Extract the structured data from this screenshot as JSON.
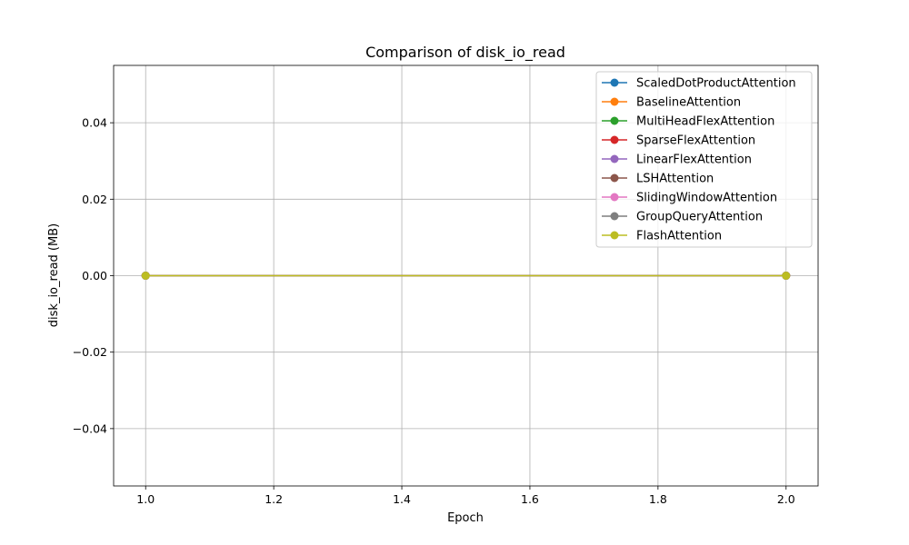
{
  "chart_data": {
    "type": "line",
    "title": "Comparison of disk_io_read",
    "xlabel": "Epoch",
    "ylabel": "disk_io_read (MB)",
    "x": [
      1.0,
      2.0
    ],
    "xlim": [
      0.95,
      2.05
    ],
    "ylim": [
      -0.055,
      0.055
    ],
    "xticks": [
      1.0,
      1.2,
      1.4,
      1.6,
      1.8,
      2.0
    ],
    "xtick_labels": [
      "1.0",
      "1.2",
      "1.4",
      "1.6",
      "1.8",
      "2.0"
    ],
    "yticks": [
      -0.04,
      -0.02,
      0.0,
      0.02,
      0.04
    ],
    "ytick_labels": [
      "−0.04",
      "−0.02",
      "0.00",
      "0.02",
      "0.04"
    ],
    "grid": true,
    "legend_position": "top-right",
    "series": [
      {
        "name": "ScaledDotProductAttention",
        "color": "#1f77b4",
        "values": [
          0.0,
          0.0
        ]
      },
      {
        "name": "BaselineAttention",
        "color": "#ff7f0e",
        "values": [
          0.0,
          0.0
        ]
      },
      {
        "name": "MultiHeadFlexAttention",
        "color": "#2ca02c",
        "values": [
          0.0,
          0.0
        ]
      },
      {
        "name": "SparseFlexAttention",
        "color": "#d62728",
        "values": [
          0.0,
          0.0
        ]
      },
      {
        "name": "LinearFlexAttention",
        "color": "#9467bd",
        "values": [
          0.0,
          0.0
        ]
      },
      {
        "name": "LSHAttention",
        "color": "#8c564b",
        "values": [
          0.0,
          0.0
        ]
      },
      {
        "name": "SlidingWindowAttention",
        "color": "#e377c2",
        "values": [
          0.0,
          0.0
        ]
      },
      {
        "name": "GroupQueryAttention",
        "color": "#7f7f7f",
        "values": [
          0.0,
          0.0
        ]
      },
      {
        "name": "FlashAttention",
        "color": "#bcbd22",
        "values": [
          0.0,
          0.0
        ]
      }
    ]
  }
}
